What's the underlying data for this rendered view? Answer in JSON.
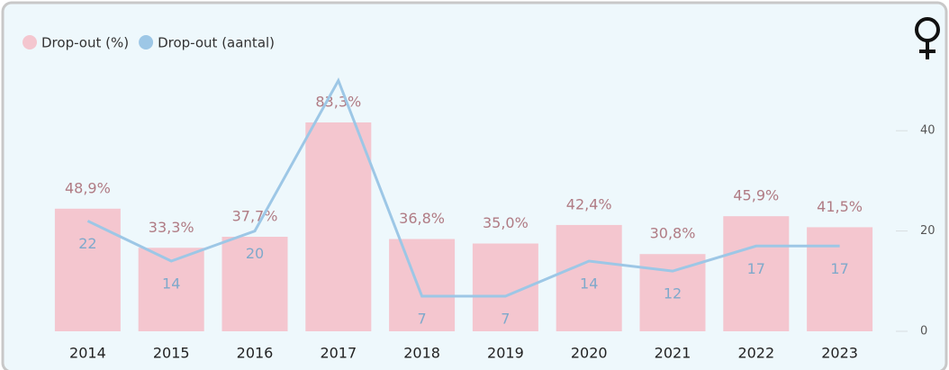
{
  "chart_data": {
    "type": "bar-line",
    "categories": [
      "2014",
      "2015",
      "2016",
      "2017",
      "2018",
      "2019",
      "2020",
      "2021",
      "2022",
      "2023"
    ],
    "series": [
      {
        "name": "Drop-out (%)",
        "color": "#f4c6cf",
        "type": "bar",
        "values": [
          48.9,
          33.3,
          37.7,
          83.3,
          36.8,
          35.0,
          42.4,
          30.8,
          45.9,
          41.5
        ],
        "value_labels": [
          "48,9%",
          "33,3%",
          "37,7%",
          "83,3%",
          "36,8%",
          "35,0%",
          "42,4%",
          "30,8%",
          "45,9%",
          "41,5%"
        ]
      },
      {
        "name": "Drop-out (aantal)",
        "color": "#9dc7e6",
        "type": "line",
        "axis": "y2",
        "values": [
          22,
          14,
          20,
          50,
          7,
          7,
          14,
          12,
          17,
          17
        ],
        "value_labels": [
          "22",
          "14",
          "20",
          null,
          "7",
          "7",
          "14",
          "12",
          "17",
          "17"
        ]
      }
    ],
    "ylim": [
      0,
      100
    ],
    "y2lim": [
      0,
      50
    ],
    "y2ticks": [
      0,
      20,
      40
    ],
    "legend": "top-left"
  }
}
